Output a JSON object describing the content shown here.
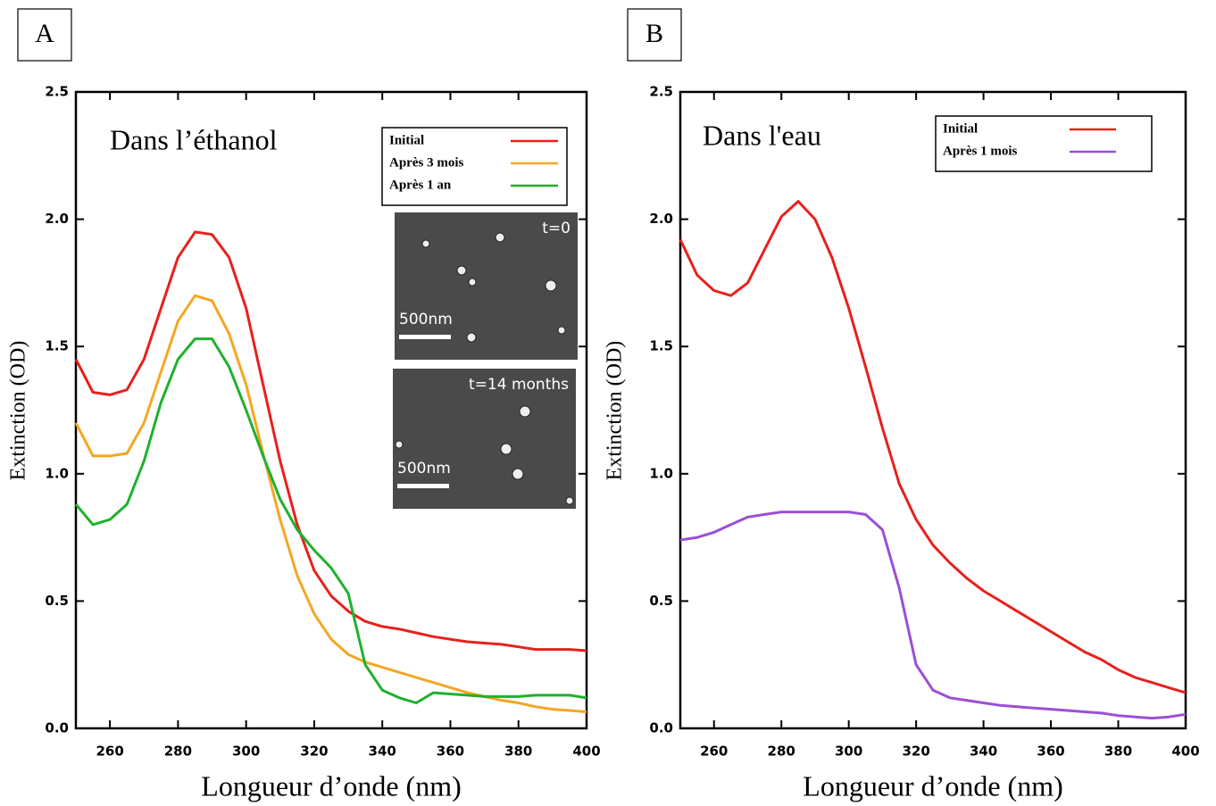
{
  "chart_data": [
    {
      "type": "line",
      "panel": "A",
      "annotation": "Dans l’éthanol",
      "x_label": "Longueur d’onde (nm)",
      "y_label": "Extinction (OD)",
      "xlim": [
        250,
        400
      ],
      "ylim": [
        0,
        2.5
      ],
      "xticks": [
        260,
        280,
        300,
        320,
        340,
        360,
        380,
        400
      ],
      "yticks": [
        {
          "value": 0,
          "label": "0.0"
        },
        0.5,
        {
          "value": 1,
          "label": "1.0"
        },
        1.5,
        {
          "value": 2,
          "label": "2.0"
        },
        2.5
      ],
      "legend": "upper right",
      "x": [
        250,
        255,
        260,
        265,
        270,
        275,
        280,
        285,
        290,
        295,
        300,
        305,
        310,
        315,
        320,
        325,
        330,
        335,
        340,
        345,
        350,
        355,
        360,
        365,
        370,
        375,
        380,
        385,
        390,
        395,
        400
      ],
      "series": [
        {
          "name": "Initial",
          "color": "#e8201c",
          "values": [
            1.45,
            1.32,
            1.31,
            1.33,
            1.45,
            1.65,
            1.85,
            1.95,
            1.94,
            1.85,
            1.65,
            1.35,
            1.05,
            0.8,
            0.62,
            0.52,
            0.46,
            0.42,
            0.4,
            0.39,
            0.375,
            0.36,
            0.35,
            0.34,
            0.335,
            0.33,
            0.32,
            0.31,
            0.31,
            0.31,
            0.305
          ]
        },
        {
          "name": "Après 3 mois",
          "color": "#f5a623",
          "values": [
            1.2,
            1.07,
            1.07,
            1.08,
            1.2,
            1.4,
            1.6,
            1.7,
            1.68,
            1.55,
            1.35,
            1.08,
            0.82,
            0.6,
            0.45,
            0.35,
            0.29,
            0.26,
            0.24,
            0.22,
            0.2,
            0.18,
            0.16,
            0.14,
            0.125,
            0.11,
            0.1,
            0.085,
            0.075,
            0.07,
            0.065
          ]
        },
        {
          "name": "Après 1 an",
          "color": "#1eb12d",
          "values": [
            0.88,
            0.8,
            0.82,
            0.88,
            1.05,
            1.28,
            1.45,
            1.53,
            1.53,
            1.42,
            1.25,
            1.07,
            0.9,
            0.78,
            0.7,
            0.63,
            0.53,
            0.25,
            0.15,
            0.12,
            0.1,
            0.14,
            0.135,
            0.13,
            0.125,
            0.125,
            0.125,
            0.13,
            0.13,
            0.13,
            0.12
          ]
        }
      ],
      "insets": [
        {
          "label": "t=0",
          "scale_bar": "500nm"
        },
        {
          "label": "t=14 months",
          "scale_bar": "500nm"
        }
      ]
    },
    {
      "type": "line",
      "panel": "B",
      "annotation": "Dans l'eau",
      "x_label": "Longueur d’onde (nm)",
      "y_label": "Extinction (OD)",
      "xlim": [
        250,
        400
      ],
      "ylim": [
        0,
        2.5
      ],
      "xticks": [
        260,
        280,
        300,
        320,
        340,
        360,
        380,
        400
      ],
      "yticks": [
        {
          "value": 0,
          "label": "0.0"
        },
        0.5,
        {
          "value": 1,
          "label": "1.0"
        },
        1.5,
        {
          "value": 2,
          "label": "2.0"
        },
        2.5
      ],
      "legend": "upper right",
      "x": [
        250,
        255,
        260,
        265,
        270,
        275,
        280,
        285,
        290,
        295,
        300,
        305,
        310,
        315,
        320,
        325,
        330,
        335,
        340,
        345,
        350,
        355,
        360,
        365,
        370,
        375,
        380,
        385,
        390,
        395,
        400
      ],
      "series": [
        {
          "name": "Initial",
          "color": "#e8201c",
          "values": [
            1.92,
            1.78,
            1.72,
            1.7,
            1.75,
            1.88,
            2.01,
            2.07,
            2.0,
            1.85,
            1.65,
            1.42,
            1.18,
            0.96,
            0.82,
            0.72,
            0.65,
            0.59,
            0.54,
            0.5,
            0.46,
            0.42,
            0.38,
            0.34,
            0.3,
            0.27,
            0.23,
            0.2,
            0.18,
            0.16,
            0.14
          ]
        },
        {
          "name": "Après 1 mois",
          "color": "#9b4fd6",
          "values": [
            0.74,
            0.75,
            0.77,
            0.8,
            0.83,
            0.84,
            0.85,
            0.85,
            0.85,
            0.85,
            0.85,
            0.84,
            0.78,
            0.55,
            0.25,
            0.15,
            0.12,
            0.11,
            0.1,
            0.09,
            0.085,
            0.08,
            0.075,
            0.07,
            0.065,
            0.06,
            0.05,
            0.045,
            0.04,
            0.045,
            0.055
          ]
        }
      ]
    }
  ]
}
